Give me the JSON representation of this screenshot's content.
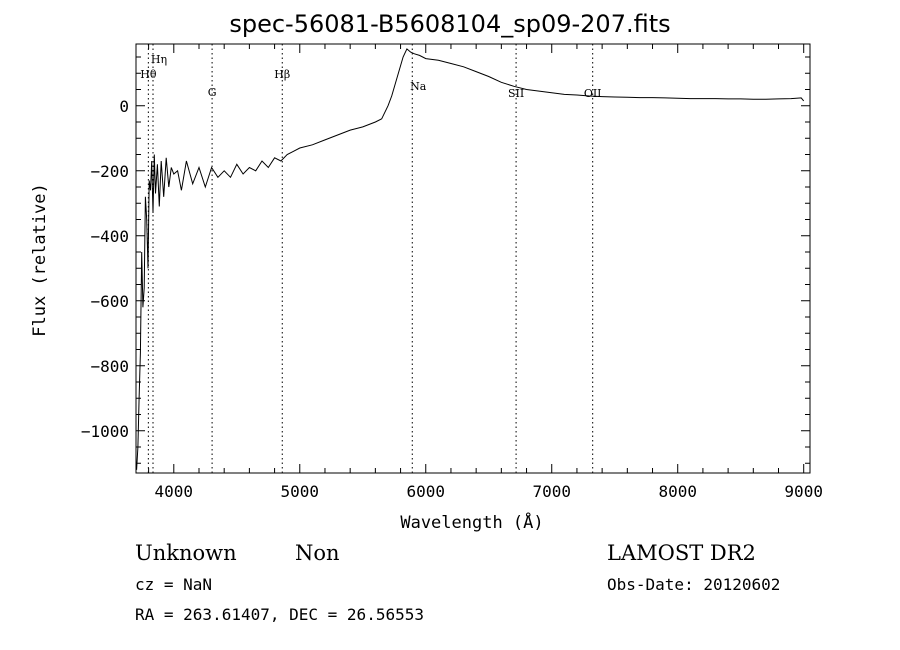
{
  "title": "spec-56081-B5608104_sp09-207.fits",
  "footer": {
    "class_label": "Unknown",
    "subclass_label": "Non",
    "survey": "LAMOST DR2",
    "cz": "cz = NaN",
    "obs_date": "Obs-Date: 20120602",
    "coords": "RA = 263.61407, DEC =  26.56553"
  },
  "chart_data": {
    "type": "line",
    "title": "spec-56081-B5608104_sp09-207.fits",
    "xlabel": "Wavelength (Å)",
    "ylabel": "Flux (relative)",
    "xlim": [
      3700,
      9050
    ],
    "ylim": [
      -1130,
      190
    ],
    "xticks": [
      4000,
      5000,
      6000,
      7000,
      8000,
      9000
    ],
    "yticks": [
      -1000,
      -800,
      -600,
      -400,
      -200,
      0
    ],
    "grid": false,
    "lines": [
      {
        "label": "Hη",
        "x": 3835
      },
      {
        "label": "Hθ",
        "x": 3798
      },
      {
        "label": "G",
        "x": 4304
      },
      {
        "label": "Hβ",
        "x": 4861
      },
      {
        "label": "Na",
        "x": 5893
      },
      {
        "label": "SII",
        "x": 6717
      },
      {
        "label": "OII",
        "x": 7325
      }
    ],
    "series": [
      {
        "x": [
          3705,
          3715,
          3725,
          3735,
          3745,
          3755,
          3765,
          3775,
          3785,
          3795,
          3805,
          3815,
          3825,
          3835,
          3845,
          3855,
          3870,
          3885,
          3900,
          3920,
          3940,
          3960,
          3980,
          4000,
          4030,
          4060,
          4100,
          4150,
          4200,
          4250,
          4300,
          4350,
          4400,
          4450,
          4500,
          4550,
          4600,
          4650,
          4700,
          4750,
          4800,
          4850,
          4900,
          4950,
          5000,
          5100,
          5200,
          5300,
          5400,
          5500,
          5600,
          5650,
          5700,
          5730,
          5760,
          5790,
          5820,
          5850,
          5880,
          5910,
          5950,
          6000,
          6100,
          6200,
          6300,
          6400,
          6500,
          6600,
          6700,
          6800,
          6900,
          7000,
          7100,
          7200,
          7300,
          7400,
          7500,
          7600,
          7700,
          7800,
          7900,
          8000,
          8100,
          8200,
          8300,
          8400,
          8500,
          8600,
          8700,
          8800,
          8900,
          8980,
          9000
        ],
        "y": [
          -1120,
          -1050,
          -900,
          -760,
          -450,
          -620,
          -560,
          -280,
          -350,
          -500,
          -230,
          -260,
          -170,
          -330,
          -150,
          -270,
          -180,
          -310,
          -170,
          -280,
          -160,
          -250,
          -190,
          -210,
          -200,
          -260,
          -170,
          -240,
          -190,
          -250,
          -190,
          -220,
          -200,
          -220,
          -180,
          -210,
          -190,
          -200,
          -170,
          -190,
          -160,
          -170,
          -150,
          -140,
          -130,
          -120,
          -105,
          -90,
          -75,
          -65,
          -50,
          -40,
          0,
          30,
          70,
          110,
          150,
          175,
          165,
          160,
          155,
          145,
          140,
          130,
          120,
          105,
          90,
          72,
          60,
          50,
          45,
          40,
          35,
          33,
          30,
          28,
          27,
          26,
          25,
          25,
          24,
          23,
          22,
          22,
          22,
          21,
          21,
          20,
          20,
          21,
          22,
          24,
          15
        ]
      }
    ]
  }
}
